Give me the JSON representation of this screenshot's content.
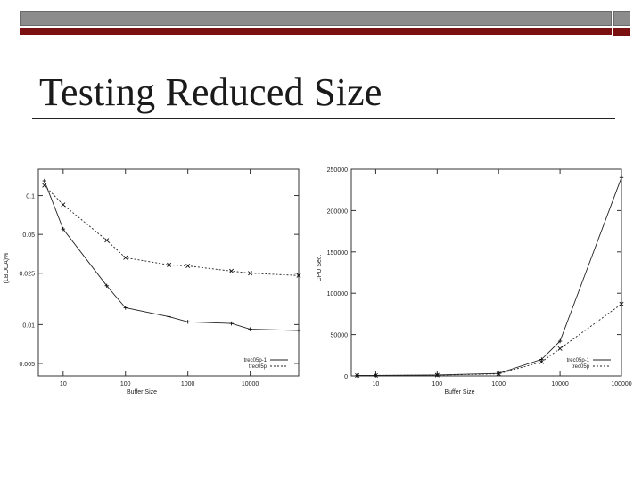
{
  "slide": {
    "title": "Testing Reduced Size",
    "colors": {
      "bar_grey": "#8c8c8c",
      "bar_red": "#7a1010",
      "rule": "#222222"
    }
  },
  "chart_data": [
    {
      "type": "line",
      "ylabel": "(LBOCA)%",
      "xlabel": "Buffer Size",
      "xscale": "log",
      "yscale": "log",
      "xlim": [
        4,
        60000
      ],
      "ylim": [
        0.004,
        0.16
      ],
      "xticks": [
        10,
        100,
        1000,
        10000
      ],
      "xtick_labels": [
        "10",
        "100",
        "1000",
        "10000"
      ],
      "yticks": [
        0.005,
        0.01,
        0.025,
        0.05,
        0.1
      ],
      "ytick_labels": [
        "0.005",
        "0.01",
        "0.025",
        "0.05",
        "0.1"
      ],
      "legend_position": "bottom-right",
      "series": [
        {
          "name": "trec05p-1",
          "marker": "plus",
          "dash": "solid",
          "x": [
            5,
            10,
            50,
            100,
            500,
            1000,
            5000,
            10000,
            60000
          ],
          "y": [
            0.13,
            0.055,
            0.02,
            0.0135,
            0.0115,
            0.0105,
            0.0102,
            0.0092,
            0.009
          ]
        },
        {
          "name": "trec05p",
          "marker": "x",
          "dash": "dashed",
          "x": [
            5,
            10,
            50,
            100,
            500,
            1000,
            5000,
            10000,
            60000
          ],
          "y": [
            0.12,
            0.085,
            0.045,
            0.033,
            0.029,
            0.0285,
            0.026,
            0.025,
            0.024
          ]
        }
      ]
    },
    {
      "type": "line",
      "ylabel": "CPU Sec.",
      "xlabel": "Buffer Size",
      "xscale": "log",
      "yscale": "linear",
      "xlim": [
        4,
        100000
      ],
      "ylim": [
        0,
        250000
      ],
      "xticks": [
        10,
        100,
        1000,
        10000,
        100000
      ],
      "xtick_labels": [
        "10",
        "100",
        "1000",
        "10000",
        "100000"
      ],
      "yticks": [
        0,
        50000,
        100000,
        150000,
        200000,
        250000
      ],
      "ytick_labels": [
        "0",
        "50000",
        "100000",
        "150000",
        "200000",
        "250000"
      ],
      "legend_position": "bottom-right",
      "series": [
        {
          "name": "trec05p-1",
          "marker": "plus",
          "dash": "solid",
          "x": [
            5,
            10,
            100,
            1000,
            5000,
            10000,
            100000
          ],
          "y": [
            500,
            600,
            1200,
            3000,
            20000,
            42000,
            240000
          ]
        },
        {
          "name": "trec05p",
          "marker": "x",
          "dash": "dashed",
          "x": [
            5,
            10,
            100,
            1000,
            5000,
            10000,
            100000
          ],
          "y": [
            500,
            600,
            1000,
            2500,
            17000,
            33000,
            87000
          ]
        }
      ]
    }
  ]
}
